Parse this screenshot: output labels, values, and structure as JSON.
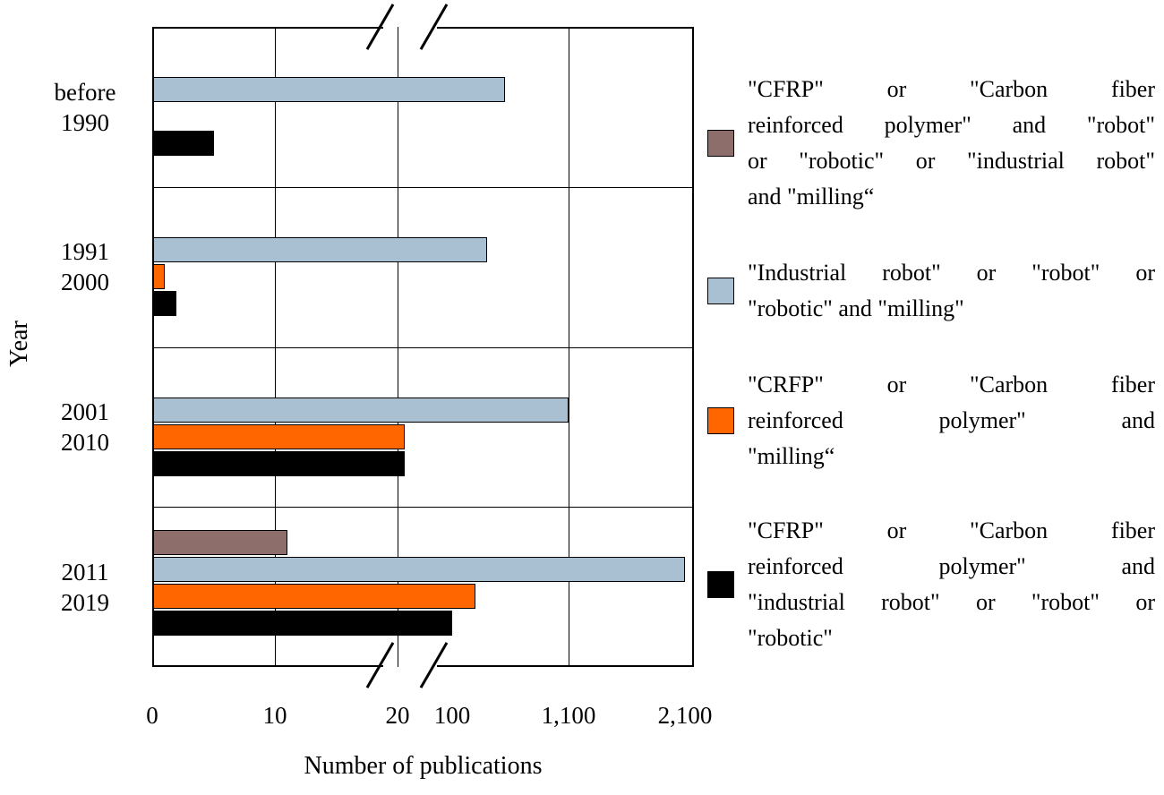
{
  "chart_data": {
    "type": "bar",
    "orientation": "horizontal",
    "title": "",
    "xlabel": "Number of publications",
    "ylabel": "Year",
    "x_axis": {
      "broken": true,
      "break_between": [
        20,
        100
      ],
      "ticks": [
        "0",
        "10",
        "20",
        "100",
        "1,100",
        "2,100"
      ],
      "gridline_values": [
        10,
        20,
        1100
      ]
    },
    "categories": [
      "before 1990",
      "1991 2000",
      "2001 2010",
      "2011 2019"
    ],
    "category_lines": [
      [
        "before",
        "1990"
      ],
      [
        "1991",
        "2000"
      ],
      [
        "2001",
        "2010"
      ],
      [
        "2011",
        "2019"
      ]
    ],
    "series": [
      {
        "name": "cfrp-and-robot-and-milling",
        "color": "#8d6e6b",
        "legend_lines": [
          "\"CFRP\" or \"Carbon fiber",
          "reinforced polymer\" and \"robot\"",
          "or \"robotic\" or \"industrial robot\"",
          "and \"milling“"
        ],
        "values": [
          0,
          0,
          0,
          11
        ]
      },
      {
        "name": "industrial-robot-and-milling",
        "color": "#a9c0d2",
        "legend_lines": [
          "\"Industrial robot\" or \"robot\" or",
          "\"robotic\" and \"milling\""
        ],
        "values": [
          550,
          400,
          1100,
          2100
        ]
      },
      {
        "name": "cfrp-and-milling",
        "color": "#ff6600",
        "legend_lines": [
          "\"CRFP\" or \"Carbon fiber",
          "reinforced polymer\" and",
          "\"milling“"
        ],
        "values": [
          0,
          1,
          30,
          300
        ]
      },
      {
        "name": "cfrp-and-robot",
        "color": "#000000",
        "legend_lines": [
          "\"CFRP\" or \"Carbon fiber",
          "reinforced polymer\" and",
          "\"industrial robot\" or \"robot\" or",
          "\"robotic\""
        ],
        "values": [
          5,
          2,
          30,
          100
        ]
      }
    ]
  }
}
